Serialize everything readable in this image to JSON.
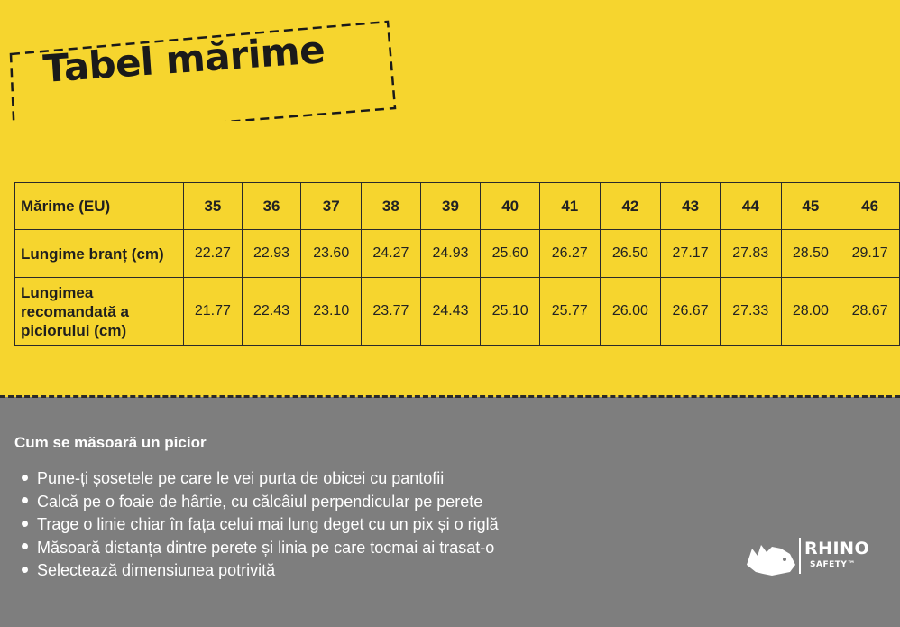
{
  "title": "Tabel mărime",
  "table": {
    "rows": [
      {
        "label": "Mărime (EU)",
        "values": [
          "35",
          "36",
          "37",
          "38",
          "39",
          "40",
          "41",
          "42",
          "43",
          "44",
          "45",
          "46"
        ]
      },
      {
        "label": "Lungime branț (cm)",
        "values": [
          "22.27",
          "22.93",
          "23.60",
          "24.27",
          "24.93",
          "25.60",
          "26.27",
          "26.50",
          "27.17",
          "27.83",
          "28.50",
          "29.17"
        ]
      },
      {
        "label": "Lungimea recomandată a piciorului (cm)",
        "values": [
          "21.77",
          "22.43",
          "23.10",
          "23.77",
          "24.43",
          "25.10",
          "25.77",
          "26.00",
          "26.67",
          "27.33",
          "28.00",
          "28.67"
        ]
      }
    ]
  },
  "howto": {
    "heading": "Cum se măsoară un picior",
    "steps": [
      "Pune-ți șosetele pe care le vei purta de obicei cu pantofii",
      "Calcă pe o foaie de hârtie, cu călcâiul perpendicular pe perete",
      "Trage o linie chiar în fața celui mai lung deget cu un pix și o riglă",
      "Măsoară distanța dintre perete și linia pe care tocmai ai trasat-o",
      "Selectează dimensiunea potrivită"
    ]
  },
  "logo": {
    "brand": "RHINO",
    "sub": "SAFETY™",
    "icon": "rhino-icon"
  },
  "colors": {
    "top_bg": "#f6d52e",
    "bottom_bg": "#7e7e7e",
    "ink": "#1a1a1a"
  }
}
